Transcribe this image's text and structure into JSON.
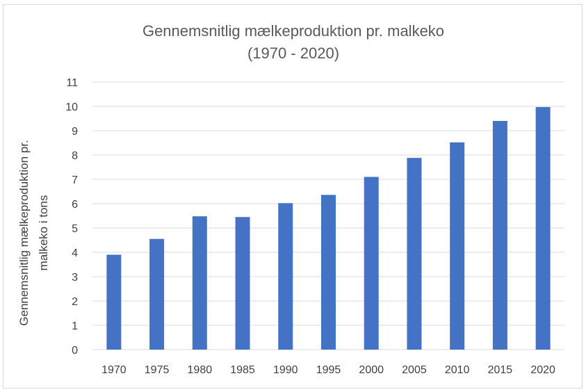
{
  "chart_data": {
    "type": "bar",
    "title_line1": "Gennemsnitlig mælkeproduktion pr. malkeko",
    "title_line2": "(1970 - 2020)",
    "xlabel": "",
    "ylabel_line1": "Gennemsnitlig mælkeproduktion pr.",
    "ylabel_line2": "malkeko i tons",
    "categories": [
      "1970",
      "1975",
      "1980",
      "1985",
      "1990",
      "1995",
      "2000",
      "2005",
      "2010",
      "2015",
      "2020"
    ],
    "values": [
      3.9,
      4.55,
      5.48,
      5.45,
      6.02,
      6.36,
      7.1,
      7.88,
      8.52,
      9.4,
      9.97
    ],
    "yticks": [
      "0",
      "1",
      "2",
      "3",
      "4",
      "5",
      "6",
      "7",
      "8",
      "9",
      "10",
      "11"
    ],
    "ylim": [
      0,
      11
    ],
    "grid": true,
    "legend": "none",
    "bar_color": "#4472c4",
    "grid_color": "#d9d9d9"
  }
}
